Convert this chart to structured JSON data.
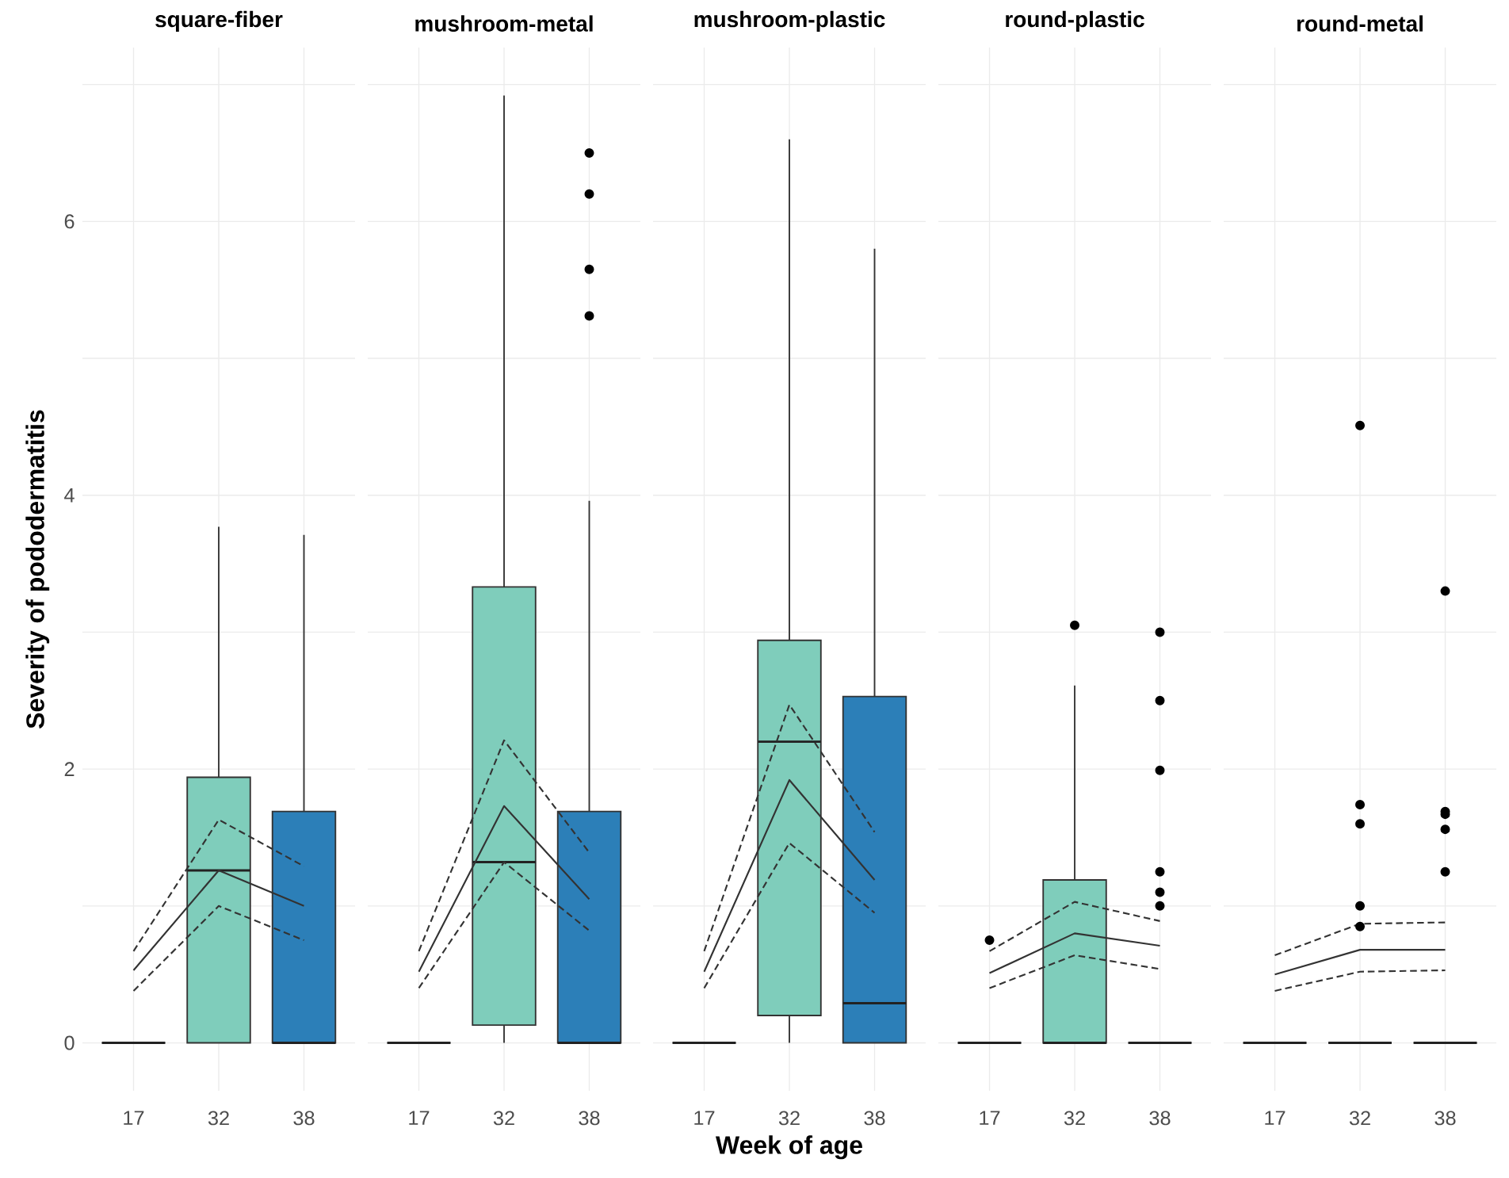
{
  "chart_data": [
    {
      "type": "box",
      "title": "square-fiber",
      "ylabel": "Severity of pododermatitis",
      "categories": [
        "17",
        "32",
        "38"
      ],
      "ylim": [
        -0.35,
        7.27
      ],
      "yticks": [
        0,
        {
          "value": 1,
          "label": null
        },
        2,
        {
          "value": 3,
          "label": null
        },
        4,
        {
          "value": 5,
          "label": null
        },
        6,
        {
          "value": 7,
          "label": null
        }
      ],
      "grid": true,
      "series": [
        {
          "type": "box",
          "colors": [
            null,
            "#7fcdbb",
            "#2c7fb8"
          ],
          "boxes": [
            {
              "low": 0,
              "q1": 0,
              "median": 0,
              "q3": 0,
              "high": 0
            },
            {
              "low": 0,
              "q1": 0,
              "median": 1.26,
              "q3": 1.94,
              "high": 3.77
            },
            {
              "low": 0,
              "q1": 0,
              "median": 0,
              "q3": 1.69,
              "high": 3.71
            }
          ]
        },
        {
          "type": "line",
          "color": "#333333",
          "line_style": "solid",
          "values": [
            0.53,
            1.26,
            1.0
          ]
        },
        {
          "type": "line",
          "color": "#333333",
          "line_style": "dashed",
          "values": [
            0.67,
            1.63,
            1.29
          ]
        },
        {
          "type": "line",
          "color": "#333333",
          "line_style": "dashed",
          "values": [
            0.38,
            1.0,
            0.75
          ]
        }
      ]
    },
    {
      "type": "box",
      "title": "mushroom-metal",
      "categories": [
        "17",
        "32",
        "38"
      ],
      "ylim": [
        -0.35,
        7.27
      ],
      "yticks": [
        0,
        {
          "value": 1,
          "label": null
        },
        2,
        {
          "value": 3,
          "label": null
        },
        4,
        {
          "value": 5,
          "label": null
        },
        6,
        {
          "value": 7,
          "label": null
        }
      ],
      "grid": true,
      "tick_labels": "x",
      "series": [
        {
          "type": "box",
          "colors": [
            null,
            "#7fcdbb",
            "#2c7fb8"
          ],
          "boxes": [
            {
              "low": 0,
              "q1": 0,
              "median": 0,
              "q3": 0,
              "high": 0
            },
            {
              "low": 0,
              "q1": 0.13,
              "median": 1.32,
              "q3": 3.33,
              "high": 6.92
            },
            {
              "low": 0,
              "q1": 0,
              "median": 0,
              "q3": 1.69,
              "high": 3.96,
              "outliers": [
                5.31,
                5.65,
                6.2,
                6.5
              ]
            }
          ]
        },
        {
          "type": "line",
          "color": "#333333",
          "line_style": "solid",
          "values": [
            0.52,
            1.73,
            1.05
          ]
        },
        {
          "type": "line",
          "color": "#333333",
          "line_style": "dashed",
          "values": [
            0.67,
            2.21,
            1.39
          ]
        },
        {
          "type": "line",
          "color": "#333333",
          "line_style": "dashed",
          "values": [
            0.4,
            1.32,
            0.82
          ]
        }
      ]
    },
    {
      "type": "box",
      "title": "mushroom-plastic",
      "xlabel": "Week of age",
      "categories": [
        "17",
        "32",
        "38"
      ],
      "ylim": [
        -0.35,
        7.27
      ],
      "yticks": [
        0,
        {
          "value": 1,
          "label": null
        },
        2,
        {
          "value": 3,
          "label": null
        },
        4,
        {
          "value": 5,
          "label": null
        },
        6,
        {
          "value": 7,
          "label": null
        }
      ],
      "grid": true,
      "tick_labels": "x",
      "series": [
        {
          "type": "box",
          "colors": [
            null,
            "#7fcdbb",
            "#2c7fb8"
          ],
          "boxes": [
            {
              "low": 0,
              "q1": 0,
              "median": 0,
              "q3": 0,
              "high": 0
            },
            {
              "low": 0,
              "q1": 0.2,
              "median": 2.2,
              "q3": 2.94,
              "high": 6.6
            },
            {
              "low": 0,
              "q1": 0,
              "median": 0.29,
              "q3": 2.53,
              "high": 5.8
            }
          ]
        },
        {
          "type": "line",
          "color": "#333333",
          "line_style": "solid",
          "values": [
            0.52,
            1.92,
            1.19
          ]
        },
        {
          "type": "line",
          "color": "#333333",
          "line_style": "dashed",
          "values": [
            0.67,
            2.47,
            1.54
          ]
        },
        {
          "type": "line",
          "color": "#333333",
          "line_style": "dashed",
          "values": [
            0.4,
            1.46,
            0.95
          ]
        }
      ]
    },
    {
      "type": "box",
      "title": "round-plastic",
      "categories": [
        "17",
        "32",
        "38"
      ],
      "ylim": [
        -0.35,
        7.27
      ],
      "yticks": [
        0,
        {
          "value": 1,
          "label": null
        },
        2,
        {
          "value": 3,
          "label": null
        },
        4,
        {
          "value": 5,
          "label": null
        },
        6,
        {
          "value": 7,
          "label": null
        }
      ],
      "grid": true,
      "tick_labels": "x",
      "series": [
        {
          "type": "box",
          "colors": [
            null,
            "#7fcdbb",
            null
          ],
          "boxes": [
            {
              "low": 0,
              "q1": 0,
              "median": 0,
              "q3": 0,
              "high": 0,
              "outliers": [
                0.75
              ]
            },
            {
              "low": 0,
              "q1": 0,
              "median": 0,
              "q3": 1.19,
              "high": 2.61,
              "outliers": [
                3.05
              ]
            },
            {
              "low": 0,
              "q1": 0,
              "median": 0,
              "q3": 0,
              "high": 0,
              "outliers": [
                1.0,
                1.1,
                1.25,
                1.99,
                2.5,
                3.0
              ]
            }
          ]
        },
        {
          "type": "line",
          "color": "#333333",
          "line_style": "solid",
          "values": [
            0.51,
            0.8,
            0.71
          ]
        },
        {
          "type": "line",
          "color": "#333333",
          "line_style": "dashed",
          "values": [
            0.67,
            1.03,
            0.89
          ]
        },
        {
          "type": "line",
          "color": "#333333",
          "line_style": "dashed",
          "values": [
            0.4,
            0.64,
            0.54
          ]
        }
      ]
    },
    {
      "type": "box",
      "title": "round-metal",
      "categories": [
        "17",
        "32",
        "38"
      ],
      "ylim": [
        -0.35,
        7.27
      ],
      "yticks": [
        0,
        {
          "value": 1,
          "label": null
        },
        2,
        {
          "value": 3,
          "label": null
        },
        4,
        {
          "value": 5,
          "label": null
        },
        6,
        {
          "value": 7,
          "label": null
        }
      ],
      "grid": true,
      "tick_labels": "x",
      "series": [
        {
          "type": "box",
          "colors": [
            null,
            null,
            null
          ],
          "boxes": [
            {
              "low": 0,
              "q1": 0,
              "median": 0,
              "q3": 0,
              "high": 0
            },
            {
              "low": 0,
              "q1": 0,
              "median": 0,
              "q3": 0,
              "high": 0,
              "outliers": [
                0.85,
                1.0,
                1.6,
                1.74,
                4.51
              ]
            },
            {
              "low": 0,
              "q1": 0,
              "median": 0,
              "q3": 0,
              "high": 0,
              "outliers": [
                1.25,
                1.56,
                1.67,
                1.69,
                3.3
              ]
            }
          ]
        },
        {
          "type": "line",
          "color": "#333333",
          "line_style": "solid",
          "values": [
            0.5,
            0.68,
            0.68
          ]
        },
        {
          "type": "line",
          "color": "#333333",
          "line_style": "dashed",
          "values": [
            0.64,
            0.87,
            0.88
          ]
        },
        {
          "type": "line",
          "color": "#333333",
          "line_style": "dashed",
          "values": [
            0.38,
            0.52,
            0.53
          ]
        }
      ]
    }
  ]
}
